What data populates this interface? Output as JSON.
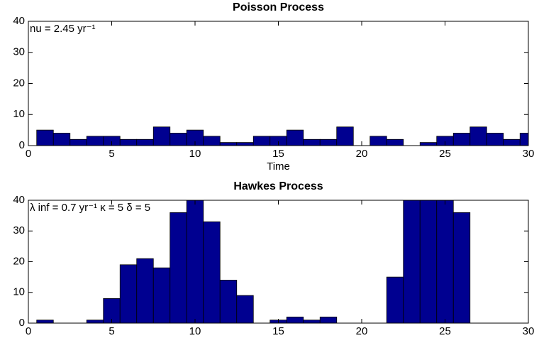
{
  "chart_data": [
    {
      "type": "histogram",
      "title": "Poisson Process",
      "xlabel": "Time",
      "annotation": "nu = 2.45 yr⁻¹",
      "color": "#000090",
      "bins": [
        0.5,
        1.5,
        2.5,
        3.5,
        4.5,
        5.5,
        6.5,
        7.5,
        8.5,
        9.5,
        10.5,
        11.5,
        12.5,
        13.5,
        14.5,
        15.5,
        16.5,
        17.5,
        18.5,
        19.5,
        20.5,
        21.5,
        22.5,
        23.5,
        24.5,
        25.5,
        26.5,
        27.5,
        28.5,
        29.5,
        30.5
      ],
      "values": [
        5,
        4,
        2,
        3,
        3,
        2,
        2,
        6,
        4,
        5,
        3,
        1,
        1,
        3,
        3,
        5,
        2,
        2,
        6,
        0,
        3,
        2,
        0,
        1,
        3,
        4,
        6,
        4,
        2,
        4
      ],
      "xlim": [
        0,
        30
      ],
      "xticks": [
        0,
        5,
        10,
        15,
        20,
        25,
        30
      ],
      "ylim": [
        0,
        40
      ],
      "yticks": [
        0,
        10,
        20,
        30,
        40
      ]
    },
    {
      "type": "histogram",
      "title": "Hawkes Process",
      "annotation": "λ inf = 0.7 yr⁻¹  κ = 5 δ = 5",
      "color": "#000090",
      "bins": [
        0.5,
        1.5,
        2.5,
        3.5,
        4.5,
        5.5,
        6.5,
        7.5,
        8.5,
        9.5,
        10.5,
        11.5,
        12.5,
        13.5,
        14.5,
        15.5,
        16.5,
        17.5,
        18.5,
        19.5,
        20.5,
        21.5,
        22.5,
        23.5,
        24.5,
        25.5,
        26.5,
        27.5,
        28.5,
        29.5,
        30.5
      ],
      "values": [
        1,
        0,
        0,
        1,
        8,
        19,
        21,
        18,
        36,
        40,
        33,
        14,
        9,
        0,
        1,
        2,
        1,
        2,
        0,
        0,
        0,
        15,
        40,
        40,
        40,
        36,
        0,
        0,
        0,
        0
      ],
      "xlim": [
        0,
        30
      ],
      "xticks": [
        0,
        5,
        10,
        15,
        20,
        25,
        30
      ],
      "ylim": [
        0,
        40
      ],
      "yticks": [
        0,
        10,
        20,
        30,
        40
      ]
    }
  ]
}
